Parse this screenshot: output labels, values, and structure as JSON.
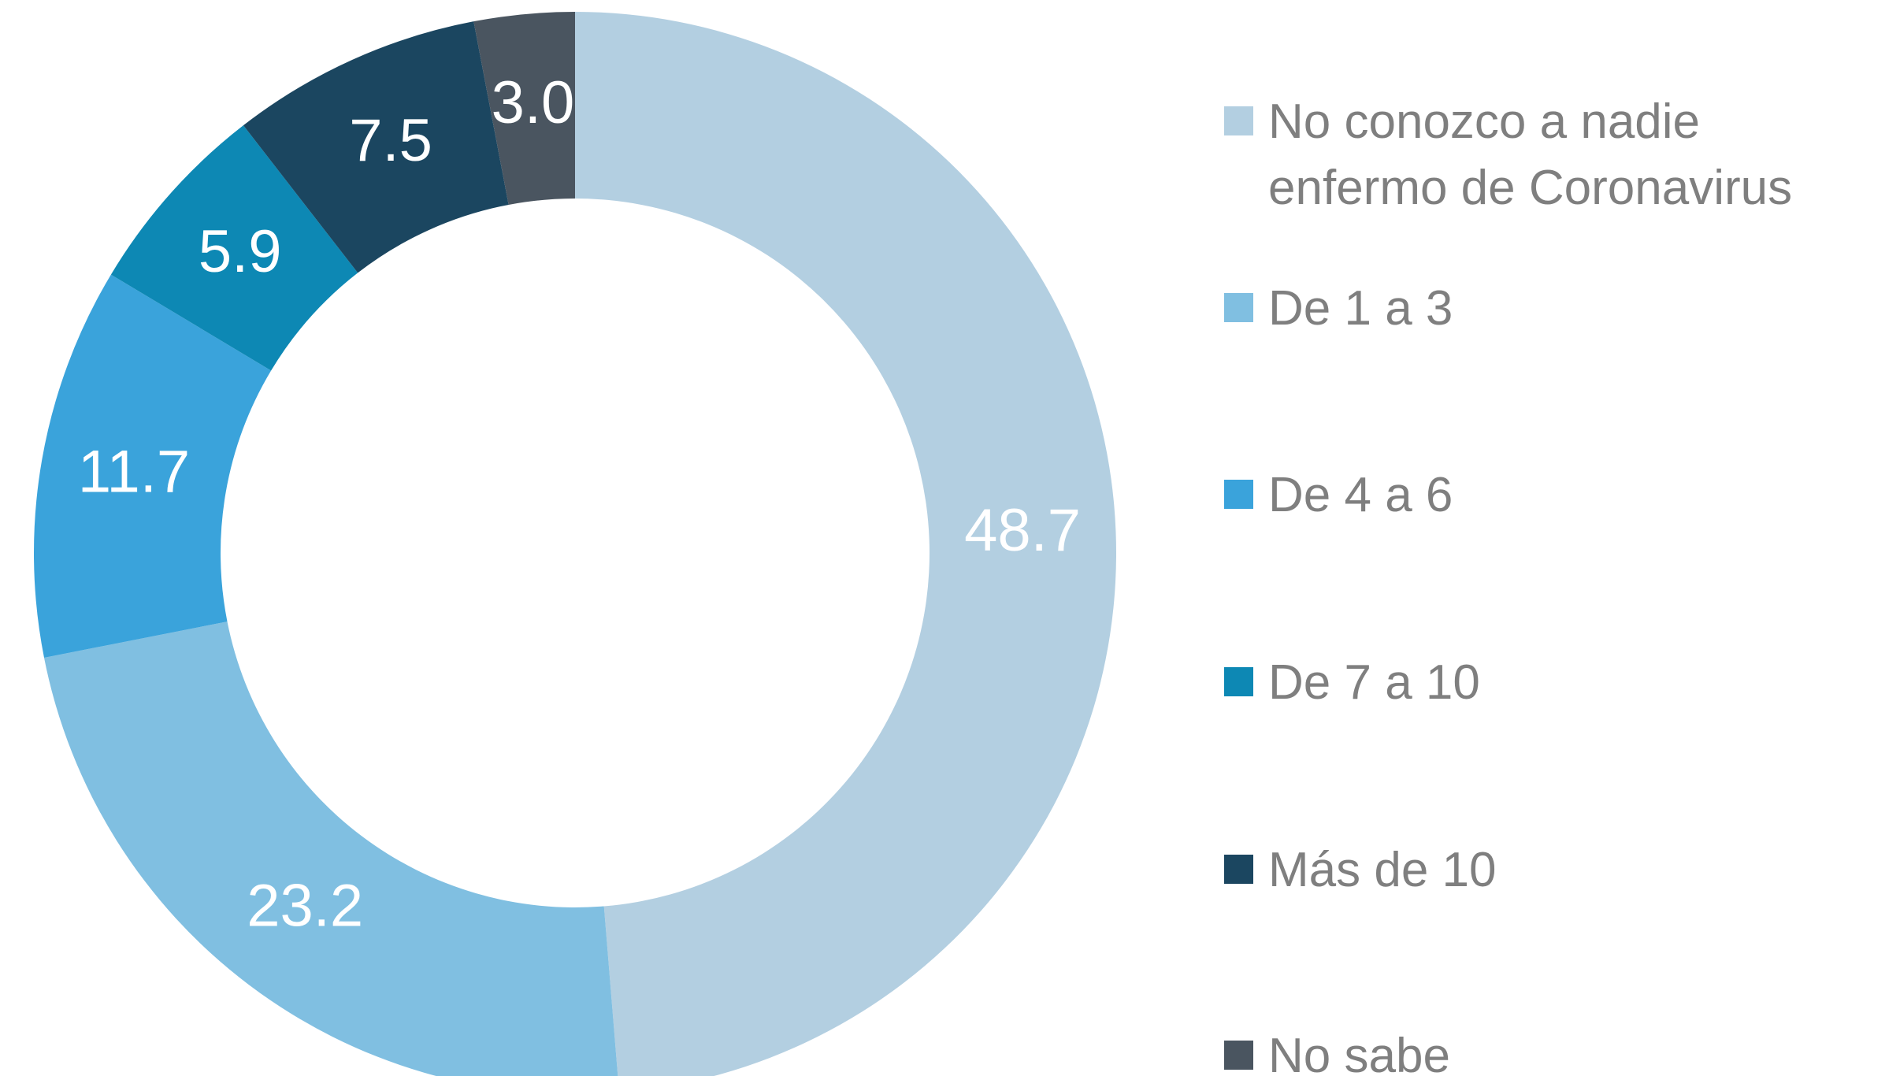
{
  "chart_data": {
    "type": "donut",
    "categories": [
      "No conozco a nadie enfermo de Coronavirus",
      "De 1 a 3",
      "De 4 a 6",
      "De 7 a 10",
      "Más de 10",
      "No sabe"
    ],
    "values": [
      48.7,
      23.2,
      11.7,
      5.9,
      7.5,
      3.0
    ],
    "value_labels": [
      "48.7",
      "23.2",
      "11.7",
      "5.9",
      "7.5",
      "3.0"
    ],
    "colors": [
      "#b3cfe1",
      "#80bfe1",
      "#3aa3db",
      "#0d88b4",
      "#1b4660",
      "#4a5560"
    ],
    "legend": "right"
  }
}
